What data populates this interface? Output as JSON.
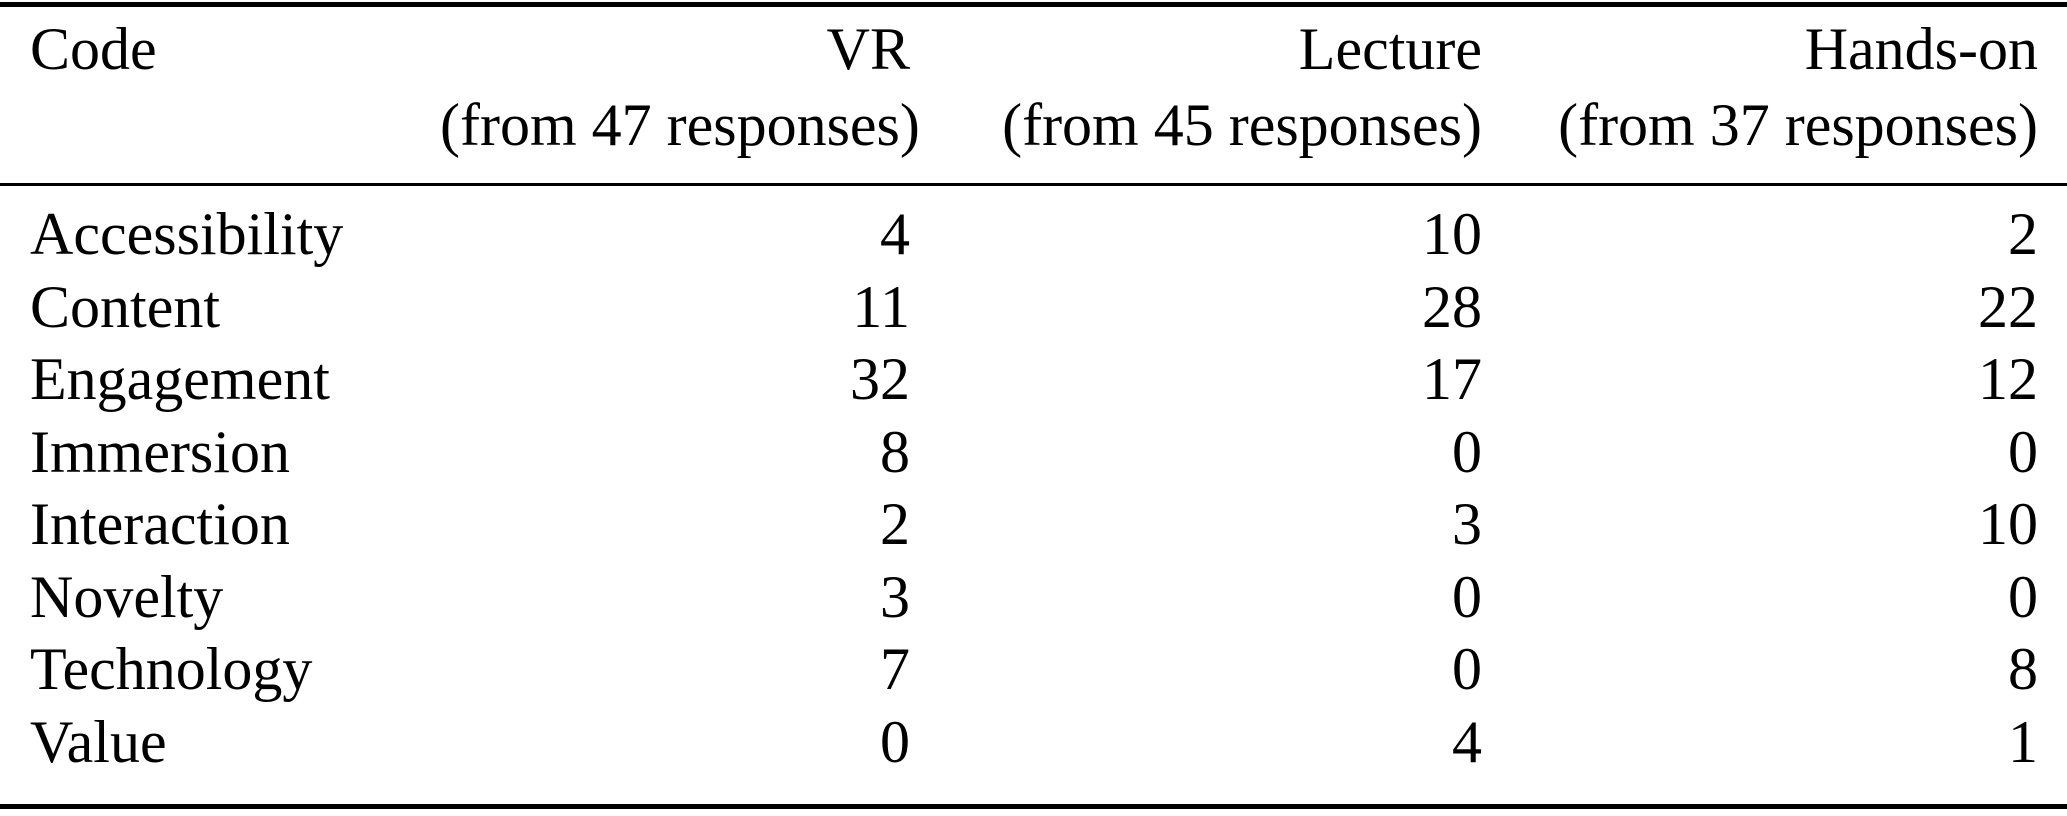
{
  "table": {
    "columns": [
      {
        "label": "Code",
        "sublabel": ""
      },
      {
        "label": "VR",
        "sublabel": "(from 47 responses)"
      },
      {
        "label": "Lecture",
        "sublabel": "(from 45 responses)"
      },
      {
        "label": "Hands-on",
        "sublabel": "(from 37 responses)"
      }
    ],
    "rows": [
      {
        "cells": [
          "Accessibility",
          "4",
          "10",
          "2"
        ]
      },
      {
        "cells": [
          "Content",
          "11",
          "28",
          "22"
        ]
      },
      {
        "cells": [
          "Engagement",
          "32",
          "17",
          "12"
        ]
      },
      {
        "cells": [
          "Immersion",
          "8",
          "0",
          "0"
        ]
      },
      {
        "cells": [
          "Interaction",
          "2",
          "3",
          "10"
        ]
      },
      {
        "cells": [
          "Novelty",
          "3",
          "0",
          "0"
        ]
      },
      {
        "cells": [
          "Technology",
          "7",
          "0",
          "8"
        ]
      },
      {
        "cells": [
          "Value",
          "0",
          "4",
          "1"
        ]
      }
    ]
  },
  "colors": {
    "text": "#000000",
    "background": "#ffffff",
    "rule": "#000000"
  }
}
